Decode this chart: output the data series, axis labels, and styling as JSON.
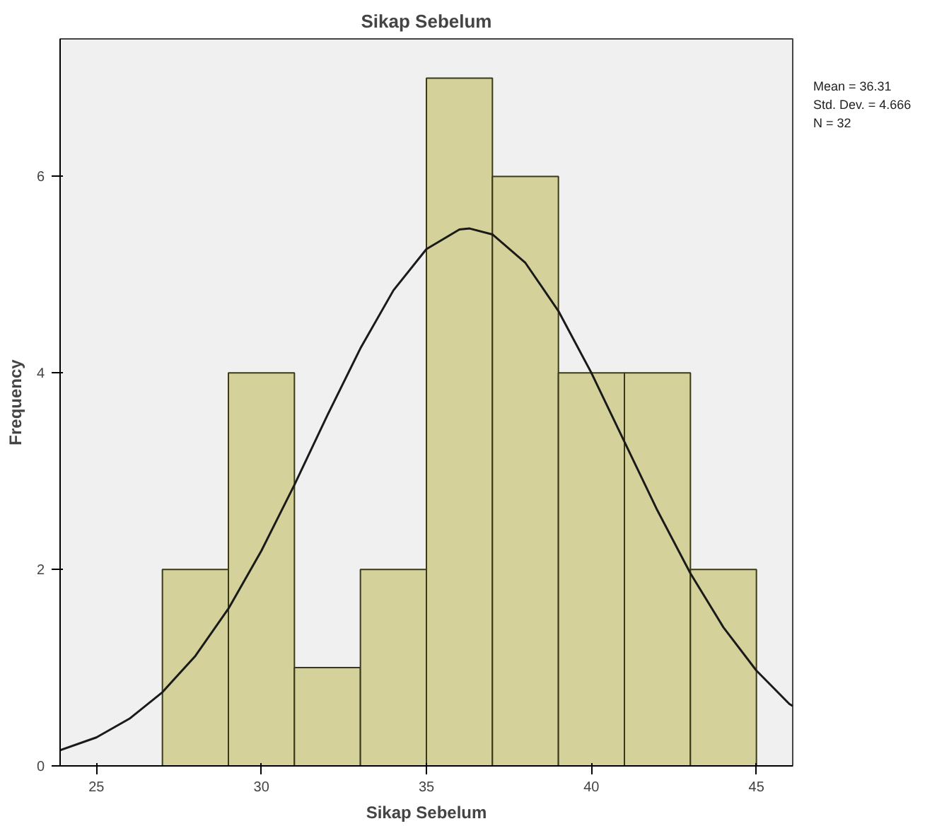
{
  "chart_data": {
    "type": "histogram",
    "title": "Sikap Sebelum",
    "xlabel": "Sikap Sebelum",
    "ylabel": "Frequency",
    "series": [
      {
        "color": "#d4d29a",
        "bins": [
          27,
          29,
          31,
          33,
          35,
          37,
          39,
          41,
          43,
          45
        ],
        "values": [
          2,
          4,
          1,
          2,
          7,
          6,
          4,
          4,
          2
        ]
      },
      {
        "type": "line",
        "color": "#1a1a1a",
        "x": [
          23.9,
          25,
          26,
          27,
          28,
          29,
          30,
          31,
          32,
          33,
          34,
          35,
          36,
          36.31,
          37,
          38,
          39,
          40,
          41,
          42,
          43,
          44,
          45,
          46,
          46.1
        ],
        "values": [
          0.16,
          0.29,
          0.48,
          0.75,
          1.12,
          1.6,
          2.19,
          2.86,
          3.57,
          4.25,
          4.84,
          5.26,
          5.46,
          5.47,
          5.41,
          5.12,
          4.63,
          4.0,
          3.3,
          2.6,
          1.96,
          1.41,
          0.97,
          0.63,
          0.61
        ]
      }
    ],
    "xlim": [
      23.9,
      46.1
    ],
    "xticks": [
      25,
      30,
      35,
      40,
      45
    ],
    "ylim": [
      0,
      7.4
    ],
    "yticks": [
      0,
      2,
      4,
      6
    ],
    "annotations": [
      "Mean = 36.31",
      "Std. Dev. = 4.666",
      "N = 32"
    ]
  }
}
